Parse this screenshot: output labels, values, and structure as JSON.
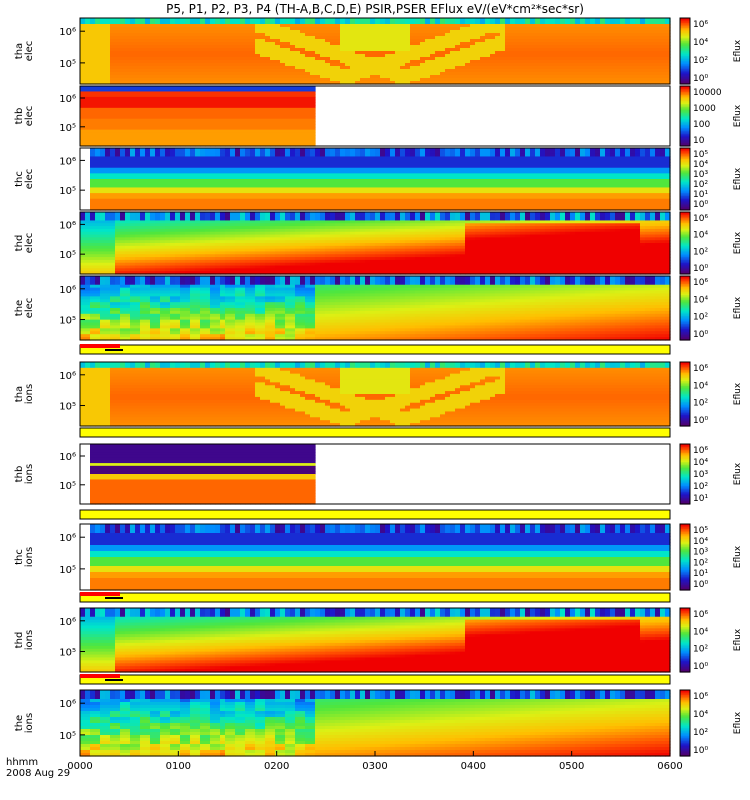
{
  "title": "P5, P1, P2, P3, P4 (TH-A,B,C,D,E) PSIR,PSER EFlux eV/(eV*cm²*sec*sr)",
  "footer": {
    "time_label": "hhmm",
    "date_label": "2008 Aug 29"
  },
  "colors": {
    "bar_red": "#ff0000",
    "bar_yellow": "#ffff00",
    "bar_black": "#000000"
  },
  "chart_data": [
    {
      "type": "heatmap",
      "name": "tha_elec",
      "ylabel": [
        "tha",
        "elec"
      ],
      "yticks": [
        "10⁶",
        "10⁵"
      ],
      "colorbar": {
        "title": "Eflux",
        "ticks": [
          "10⁶",
          "10⁴",
          "10²",
          "10⁰"
        ]
      },
      "data_end": 1.0,
      "pattern": "tha"
    },
    {
      "type": "heatmap",
      "name": "thb_elec",
      "ylabel": [
        "thb",
        "elec"
      ],
      "yticks": [
        "10⁶",
        "10⁵"
      ],
      "colorbar": {
        "title": "Eflux",
        "ticks": [
          "10000",
          "1000",
          "100",
          "10"
        ]
      },
      "data_end": 0.4,
      "pattern": "thb"
    },
    {
      "type": "heatmap",
      "name": "thc_elec",
      "ylabel": [
        "thc",
        "elec"
      ],
      "yticks": [
        "10⁶",
        "10⁵"
      ],
      "colorbar": {
        "title": "Eflux",
        "ticks": [
          "10⁵",
          "10⁴",
          "10³",
          "10²",
          "10¹",
          "10⁰"
        ]
      },
      "data_end": 1.0,
      "pattern": "thc"
    },
    {
      "type": "heatmap",
      "name": "thd_elec",
      "ylabel": [
        "thd",
        "elec"
      ],
      "yticks": [
        "10⁶",
        "10⁵"
      ],
      "colorbar": {
        "title": "Eflux",
        "ticks": [
          "10⁶",
          "10⁴",
          "10²",
          "10⁰"
        ]
      },
      "data_end": 1.0,
      "pattern": "thd"
    },
    {
      "type": "heatmap",
      "name": "the_elec",
      "ylabel": [
        "the",
        "elec"
      ],
      "yticks": [
        "10⁶",
        "10⁵"
      ],
      "colorbar": {
        "title": "Eflux",
        "ticks": [
          "10⁶",
          "10⁴",
          "10²",
          "10⁰"
        ]
      },
      "data_end": 1.0,
      "pattern": "the"
    },
    {
      "type": "heatmap",
      "name": "tha_ions",
      "ylabel": [
        "tha",
        "ions"
      ],
      "yticks": [
        "10⁶",
        "10⁵"
      ],
      "colorbar": {
        "title": "Eflux",
        "ticks": [
          "10⁶",
          "10⁴",
          "10²",
          "10⁰"
        ]
      },
      "data_end": 1.0,
      "pattern": "tha"
    },
    {
      "type": "heatmap",
      "name": "thb_ions",
      "ylabel": [
        "thb",
        "ions"
      ],
      "yticks": [
        "10⁶",
        "10⁵"
      ],
      "colorbar": {
        "title": "Eflux",
        "ticks": [
          "10⁶",
          "10⁴",
          "10³",
          "10²",
          "10¹"
        ]
      },
      "data_end": 0.4,
      "pattern": "thbi"
    },
    {
      "type": "heatmap",
      "name": "thc_ions",
      "ylabel": [
        "thc",
        "ions"
      ],
      "yticks": [
        "10⁶",
        "10⁵"
      ],
      "colorbar": {
        "title": "Eflux",
        "ticks": [
          "10⁵",
          "10⁴",
          "10³",
          "10²",
          "10¹",
          "10⁰"
        ]
      },
      "data_end": 1.0,
      "pattern": "thc"
    },
    {
      "type": "heatmap",
      "name": "thd_ions",
      "ylabel": [
        "thd",
        "ions"
      ],
      "yticks": [
        "10⁶",
        "10⁵"
      ],
      "colorbar": {
        "title": "Eflux",
        "ticks": [
          "10⁶",
          "10⁴",
          "10²",
          "10⁰"
        ]
      },
      "data_end": 1.0,
      "pattern": "thd"
    },
    {
      "type": "heatmap",
      "name": "the_ions",
      "ylabel": [
        "the",
        "ions"
      ],
      "yticks": [
        "10⁶",
        "10⁵"
      ],
      "colorbar": {
        "title": "Eflux",
        "ticks": [
          "10⁶",
          "10⁴",
          "10²",
          "10⁰"
        ]
      },
      "data_end": 1.0,
      "pattern": "the"
    }
  ],
  "x_axis": {
    "ticks": [
      "0000",
      "0100",
      "0200",
      "0300",
      "0400",
      "0500",
      "0600"
    ]
  }
}
